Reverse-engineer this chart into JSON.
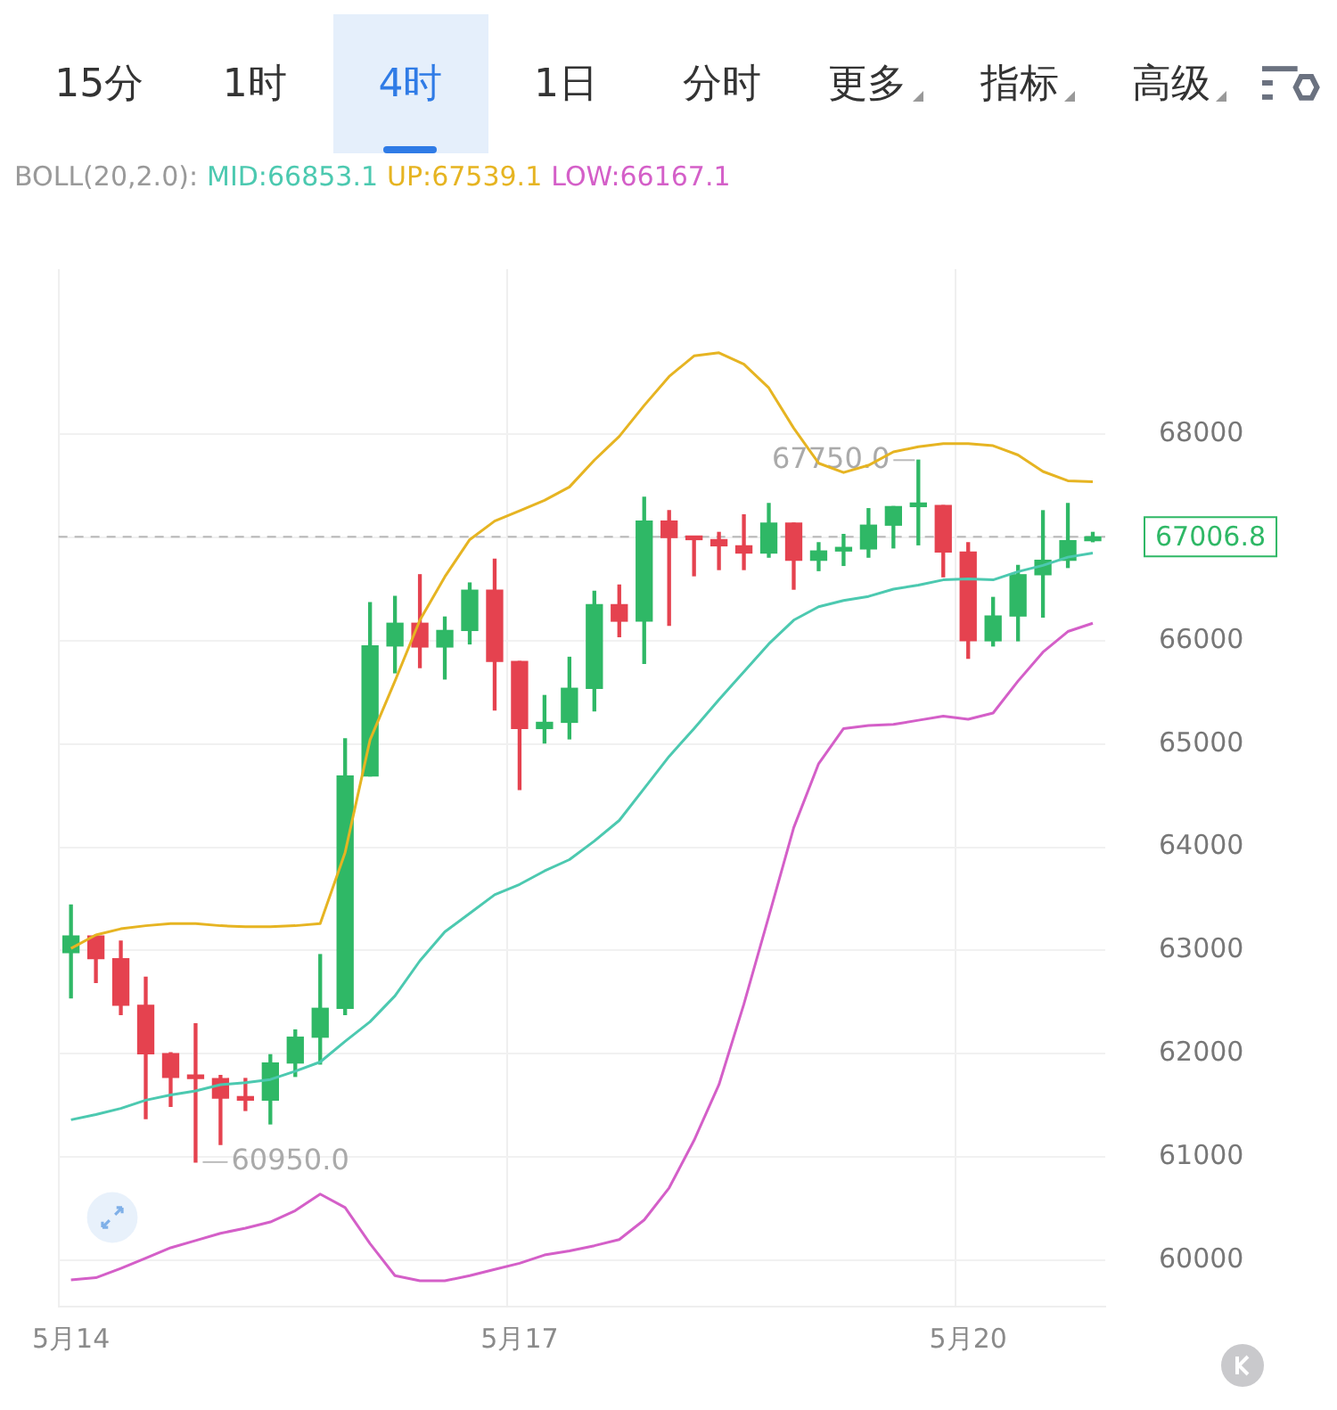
{
  "chart_data": {
    "type": "candlestick",
    "categories": [
      "5月14",
      null,
      null,
      null,
      null,
      null,
      null,
      null,
      null,
      null,
      null,
      null,
      null,
      null,
      null,
      null,
      null,
      null,
      "5月17",
      null,
      null,
      null,
      null,
      null,
      null,
      null,
      null,
      null,
      null,
      null,
      null,
      null,
      null,
      null,
      null,
      null,
      "5月20",
      null,
      null,
      null,
      null,
      null
    ],
    "ohlc": [
      [
        62980,
        63440,
        62540,
        63140
      ],
      [
        63140,
        63150,
        62690,
        62920
      ],
      [
        62920,
        63090,
        62380,
        62470
      ],
      [
        62470,
        62740,
        61370,
        62000
      ],
      [
        62000,
        62010,
        61490,
        61770
      ],
      [
        61770,
        62290,
        60950,
        61760
      ],
      [
        61760,
        61790,
        61120,
        61570
      ],
      [
        61580,
        61760,
        61450,
        61550
      ],
      [
        61550,
        61990,
        61320,
        61910
      ],
      [
        61910,
        62230,
        61780,
        62160
      ],
      [
        62160,
        62960,
        61900,
        62440
      ],
      [
        62440,
        65050,
        62380,
        64690
      ],
      [
        64690,
        66370,
        64690,
        65950
      ],
      [
        65950,
        66430,
        65690,
        66170
      ],
      [
        66170,
        66640,
        65740,
        65940
      ],
      [
        65940,
        66230,
        65630,
        66100
      ],
      [
        66100,
        66560,
        65970,
        66490
      ],
      [
        66490,
        66790,
        65330,
        65800
      ],
      [
        65800,
        65800,
        64560,
        65150
      ],
      [
        65150,
        65470,
        65010,
        65210
      ],
      [
        65210,
        65840,
        65050,
        65540
      ],
      [
        65540,
        66480,
        65320,
        66350
      ],
      [
        66350,
        66540,
        66040,
        66190
      ],
      [
        66190,
        67390,
        65780,
        67160
      ],
      [
        67160,
        67260,
        66150,
        67000
      ],
      [
        67000,
        67000,
        66630,
        66980
      ],
      [
        66980,
        67050,
        66690,
        66920
      ],
      [
        66920,
        67220,
        66690,
        66850
      ],
      [
        66850,
        67330,
        66810,
        67140
      ],
      [
        67140,
        67140,
        66500,
        66780
      ],
      [
        66780,
        66950,
        66680,
        66870
      ],
      [
        66870,
        67030,
        66730,
        66890
      ],
      [
        66890,
        67280,
        66810,
        67120
      ],
      [
        67120,
        67300,
        66900,
        67300
      ],
      [
        67300,
        67750,
        66930,
        67310
      ],
      [
        67310,
        67310,
        66620,
        66860
      ],
      [
        66860,
        66950,
        65830,
        66000
      ],
      [
        66000,
        66420,
        65950,
        66240
      ],
      [
        66240,
        66730,
        66000,
        66640
      ],
      [
        66640,
        67260,
        66230,
        66780
      ],
      [
        66780,
        67330,
        66710,
        66970
      ],
      [
        66970,
        67050,
        66960,
        67007
      ]
    ],
    "series": [
      {
        "name": "MID:66853.1",
        "type": "line",
        "color": "#4cc9b0",
        "values": [
          61360,
          61410,
          61470,
          61550,
          61600,
          61640,
          61700,
          61720,
          61750,
          61830,
          61920,
          62120,
          62310,
          62560,
          62900,
          63180,
          63360,
          63540,
          63640,
          63770,
          63880,
          64060,
          64260,
          64570,
          64880,
          65150,
          65430,
          65700,
          65970,
          66200,
          66330,
          66390,
          66430,
          66500,
          66540,
          66590,
          66600,
          66590,
          66670,
          66730,
          66810,
          66850
        ]
      },
      {
        "name": "UP:67539.1",
        "type": "line",
        "color": "#e6b422",
        "values": [
          63020,
          63150,
          63210,
          63240,
          63260,
          63260,
          63240,
          63230,
          63230,
          63240,
          63260,
          63950,
          65040,
          65610,
          66200,
          66620,
          66980,
          67160,
          67260,
          67360,
          67490,
          67750,
          67980,
          68280,
          68560,
          68760,
          68790,
          68680,
          68450,
          68060,
          67720,
          67630,
          67700,
          67830,
          67880,
          67910,
          67910,
          67890,
          67800,
          67640,
          67550,
          67540
        ]
      },
      {
        "name": "LOW:66167.1",
        "type": "line",
        "color": "#d45fc8",
        "values": [
          59810,
          59830,
          59920,
          60020,
          60120,
          60190,
          60260,
          60310,
          60370,
          60480,
          60640,
          60510,
          60160,
          59850,
          59800,
          59800,
          59850,
          59910,
          59970,
          60050,
          60090,
          60140,
          60200,
          60390,
          60700,
          61160,
          61700,
          62480,
          63330,
          64190,
          64810,
          65150,
          65180,
          65190,
          65230,
          65270,
          65240,
          65300,
          65610,
          65890,
          66090,
          66170
        ]
      }
    ],
    "legend_title": "BOLL(20,2.0):",
    "legend": "top",
    "marker": "none",
    "line_style": "solid",
    "ylim": [
      59550,
      69600
    ],
    "yticks": [
      60000,
      61000,
      62000,
      63000,
      64000,
      65000,
      66000,
      {
        "value": 67000,
        "label": null
      },
      68000
    ],
    "grid": true,
    "ref_lines": [
      {
        "axis": "y",
        "value": 67006.8,
        "label": "67006.8",
        "color": "#b8b8b8",
        "line_style": "dashed"
      }
    ],
    "annotations": [
      "15分",
      "1时",
      "4时",
      "1日",
      "分时",
      "更多",
      "指标",
      "高级",
      "67750.0",
      "60950.0"
    ]
  }
}
